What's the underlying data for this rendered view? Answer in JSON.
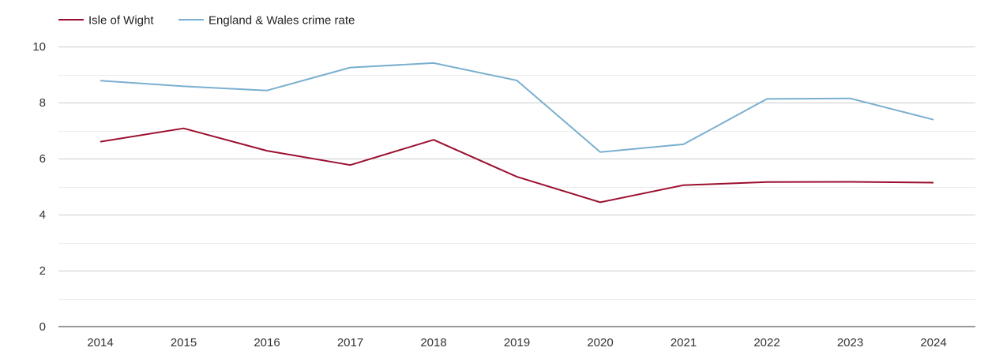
{
  "chart_data": {
    "type": "line",
    "title": "",
    "xlabel": "",
    "ylabel": "",
    "x": [
      "2014",
      "2015",
      "2016",
      "2017",
      "2018",
      "2019",
      "2020",
      "2021",
      "2022",
      "2023",
      "2024"
    ],
    "ylim": [
      0,
      10
    ],
    "yticks": [
      "0",
      "2",
      "4",
      "6",
      "8",
      "10"
    ],
    "grid": true,
    "legend_position": "top-left",
    "series": [
      {
        "name": "Isle of Wight",
        "color": "#9b0f2e",
        "values": [
          6.6,
          7.08,
          6.28,
          5.77,
          6.67,
          5.35,
          4.44,
          5.05,
          5.16,
          5.17,
          5.14
        ]
      },
      {
        "name": "England & Wales crime rate",
        "color": "#7aafcf",
        "values": [
          8.78,
          8.58,
          8.43,
          9.25,
          9.41,
          8.79,
          6.23,
          6.51,
          8.13,
          8.15,
          7.39
        ]
      }
    ]
  }
}
